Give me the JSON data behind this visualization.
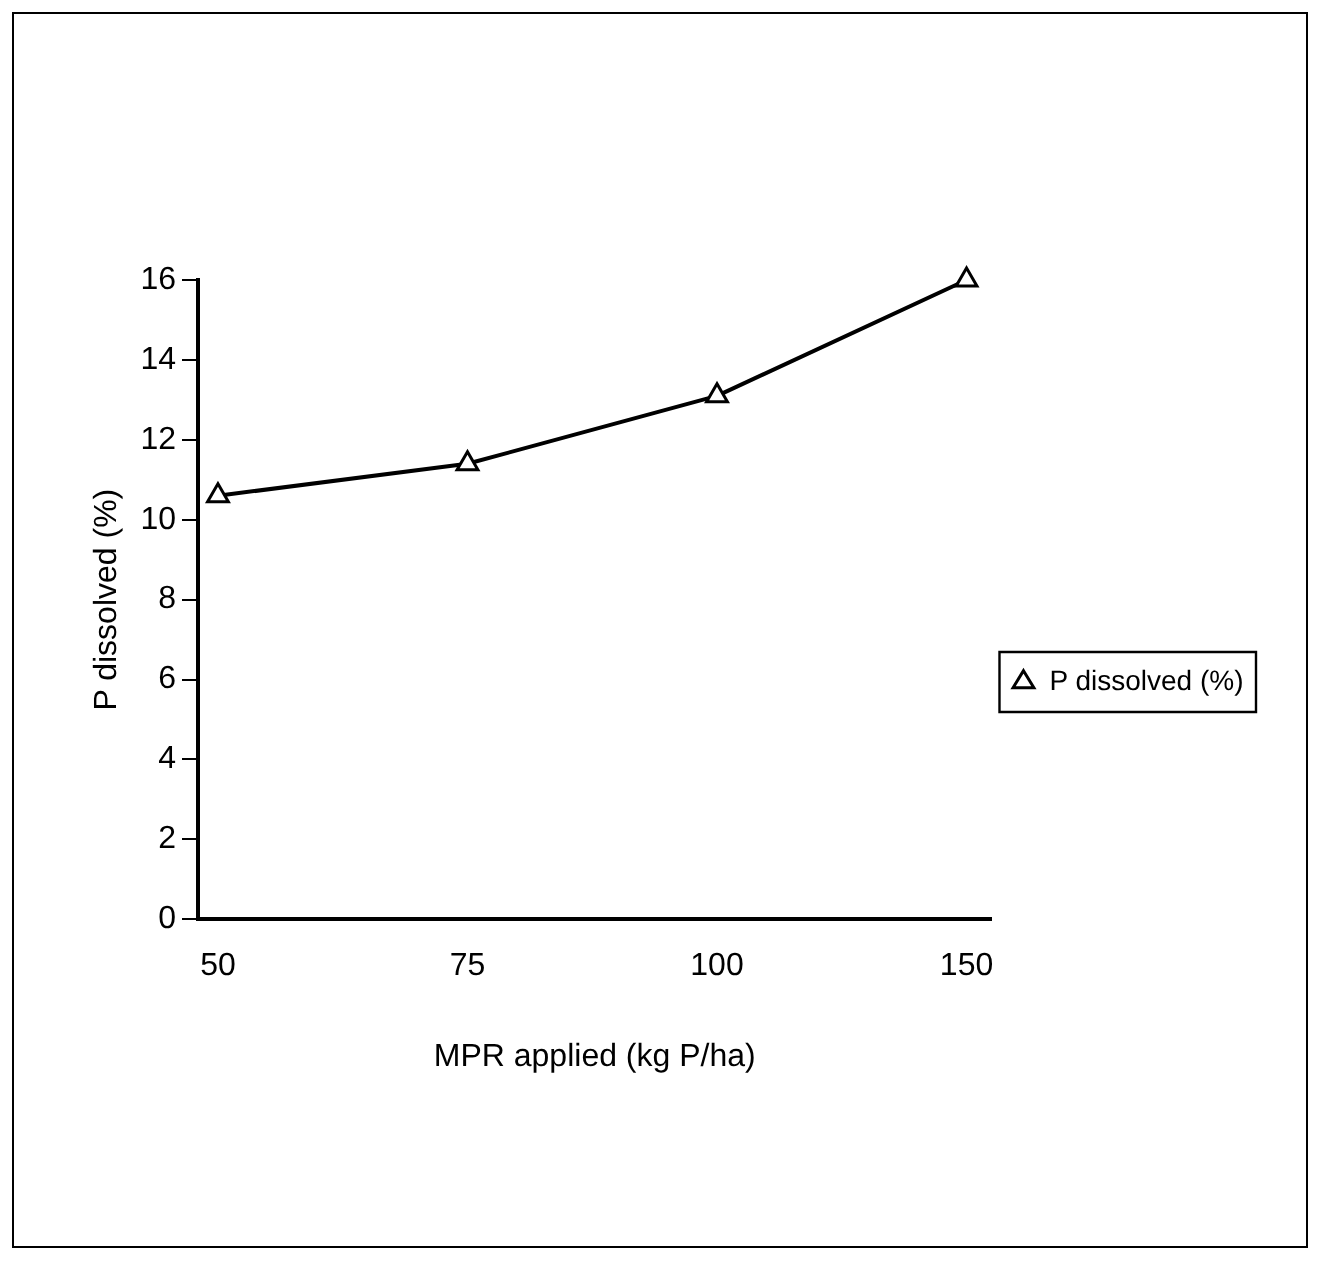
{
  "chart_data": {
    "type": "line",
    "xlabel": "MPR applied (kg P/ha)",
    "ylabel": "P dissolved (%)",
    "categories": [
      "50",
      "75",
      "100",
      "150"
    ],
    "series": [
      {
        "name": "P dissolved (%)",
        "color": "#000000",
        "values": [
          10.6,
          11.4,
          13.1,
          16.0
        ]
      }
    ],
    "ylim": [
      0,
      16
    ],
    "yticks": [
      0,
      2,
      4,
      6,
      8,
      10,
      12,
      14,
      16
    ],
    "marker": "triangle",
    "line_style": "solid",
    "legend": "right",
    "grid": false
  }
}
